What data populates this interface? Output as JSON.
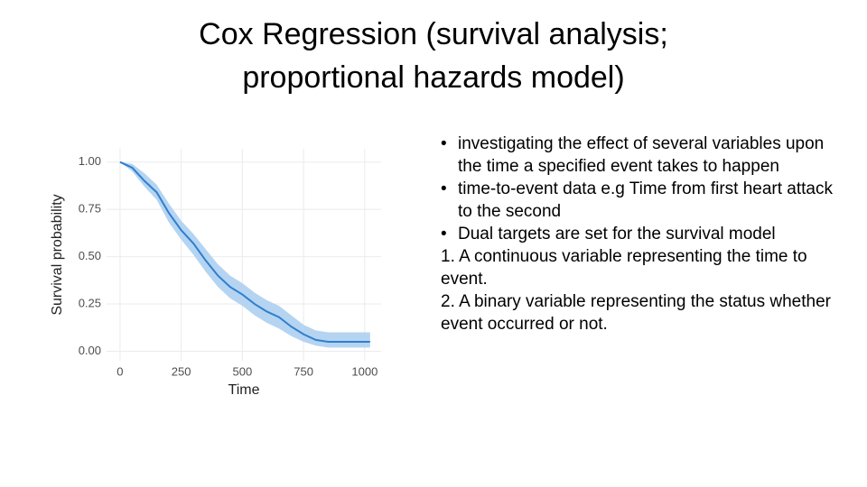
{
  "title": [
    "Cox Regression (survival analysis;",
    "proportional hazards model)"
  ],
  "items": [
    {
      "kind": "bullet",
      "text": "investigating the effect of several variables upon the time a specified event takes to happen"
    },
    {
      "kind": "bullet",
      "text": "time-to-event data e.g Time from first heart attack to the second"
    },
    {
      "kind": "bullet",
      "text": "Dual targets are set for the survival model"
    },
    {
      "kind": "plain",
      "text": "1. A continuous variable representing the time to event."
    },
    {
      "kind": "plain",
      "text": "2. A binary variable representing the status whether event occurred or not."
    }
  ],
  "chart_data": {
    "type": "line",
    "x_label": "Time",
    "y_label": "Survival probability",
    "x": [
      0,
      50,
      100,
      150,
      200,
      250,
      300,
      350,
      400,
      450,
      500,
      550,
      600,
      650,
      700,
      750,
      800,
      850,
      900,
      950,
      1000,
      1022
    ],
    "series": [
      {
        "color": "#2f7fcf",
        "values": [
          1.0,
          0.97,
          0.9,
          0.84,
          0.73,
          0.64,
          0.57,
          0.48,
          0.4,
          0.34,
          0.3,
          0.25,
          0.21,
          0.18,
          0.13,
          0.09,
          0.06,
          0.05,
          0.05,
          0.05,
          0.05,
          0.05
        ]
      }
    ],
    "band": {
      "color": "#b5d4f1",
      "lower": [
        1.0,
        0.95,
        0.87,
        0.8,
        0.68,
        0.59,
        0.51,
        0.42,
        0.34,
        0.28,
        0.24,
        0.19,
        0.15,
        0.12,
        0.08,
        0.05,
        0.03,
        0.02,
        0.02,
        0.02,
        0.02,
        0.02
      ],
      "upper": [
        1.0,
        0.99,
        0.94,
        0.88,
        0.78,
        0.69,
        0.62,
        0.54,
        0.46,
        0.4,
        0.36,
        0.31,
        0.27,
        0.24,
        0.19,
        0.14,
        0.11,
        0.1,
        0.1,
        0.1,
        0.1,
        0.1
      ]
    },
    "xlim": [
      -55,
      1067
    ],
    "xticks": [
      0,
      250,
      500,
      750,
      1000
    ],
    "ylim": [
      -0.05,
      1.07
    ],
    "yticks": [
      {
        "value": 0,
        "label": "0.00"
      },
      {
        "value": 0.25,
        "label": "0.25"
      },
      {
        "value": 0.5,
        "label": "0.50"
      },
      {
        "value": 0.75,
        "label": "0.75"
      },
      {
        "value": 1,
        "label": "1.00"
      }
    ],
    "grid": true
  }
}
